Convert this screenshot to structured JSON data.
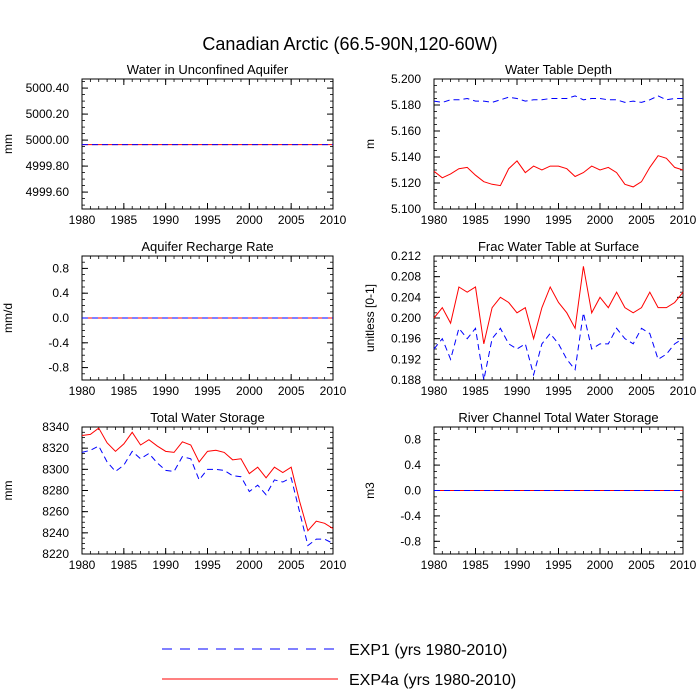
{
  "figure": {
    "title": "Canadian Arctic (66.5-90N,120-60W)"
  },
  "colors": {
    "exp1": "#0000ff",
    "exp4a": "#ff0000",
    "axis": "#000000",
    "background": "#ffffff"
  },
  "legend": [
    {
      "label": "EXP1 (yrs 1980-2010)",
      "color": "#0000ff",
      "dash": "dashed"
    },
    {
      "label": "EXP4a (yrs 1980-2010)",
      "color": "#ff0000",
      "dash": "solid"
    }
  ],
  "chart_data": [
    {
      "type": "line",
      "title": "Water in Unconfined Aquifer",
      "xlabel": "",
      "ylabel": "mm",
      "xlim": [
        1980,
        2010
      ],
      "ylim": [
        4999.47,
        5000.47
      ],
      "xticks": [
        1980,
        1985,
        1990,
        1995,
        2000,
        2005,
        2010
      ],
      "yticks": [
        4999.6,
        4999.8,
        5000.0,
        5000.2,
        5000.4
      ],
      "ytick_labels": [
        "4999.60",
        "4999.80",
        "5000.00",
        "5000.20",
        "5000.40"
      ],
      "x": [
        1980,
        1981,
        1982,
        1983,
        1984,
        1985,
        1986,
        1987,
        1988,
        1989,
        1990,
        1991,
        1992,
        1993,
        1994,
        1995,
        1996,
        1997,
        1998,
        1999,
        2000,
        2001,
        2002,
        2003,
        2004,
        2005,
        2006,
        2007,
        2008,
        2009,
        2010
      ],
      "series": [
        {
          "name": "EXP1 (yrs 1980-2010)",
          "values": [
            4999.965,
            4999.965,
            4999.965,
            4999.965,
            4999.965,
            4999.965,
            4999.965,
            4999.965,
            4999.965,
            4999.965,
            4999.965,
            4999.965,
            4999.965,
            4999.965,
            4999.965,
            4999.965,
            4999.965,
            4999.965,
            4999.965,
            4999.965,
            4999.965,
            4999.965,
            4999.965,
            4999.965,
            4999.965,
            4999.965,
            4999.965,
            4999.965,
            4999.965,
            4999.965,
            4999.965
          ]
        },
        {
          "name": "EXP4a (yrs 1980-2010)",
          "values": [
            4999.965,
            4999.965,
            4999.965,
            4999.965,
            4999.965,
            4999.965,
            4999.965,
            4999.965,
            4999.965,
            4999.965,
            4999.965,
            4999.965,
            4999.965,
            4999.965,
            4999.965,
            4999.965,
            4999.965,
            4999.965,
            4999.965,
            4999.965,
            4999.965,
            4999.965,
            4999.965,
            4999.965,
            4999.965,
            4999.965,
            4999.965,
            4999.965,
            4999.965,
            4999.965,
            4999.965
          ]
        }
      ]
    },
    {
      "type": "line",
      "title": "Water Table Depth",
      "xlabel": "",
      "ylabel": "m",
      "xlim": [
        1980,
        2010
      ],
      "ylim": [
        5.1,
        5.2
      ],
      "xticks": [
        1980,
        1985,
        1990,
        1995,
        2000,
        2005,
        2010
      ],
      "yticks": [
        5.1,
        5.12,
        5.14,
        5.16,
        5.18,
        5.2
      ],
      "ytick_labels": [
        "5.100",
        "5.120",
        "5.140",
        "5.160",
        "5.180",
        "5.200"
      ],
      "x": [
        1980,
        1981,
        1982,
        1983,
        1984,
        1985,
        1986,
        1987,
        1988,
        1989,
        1990,
        1991,
        1992,
        1993,
        1994,
        1995,
        1996,
        1997,
        1998,
        1999,
        2000,
        2001,
        2002,
        2003,
        2004,
        2005,
        2006,
        2007,
        2008,
        2009,
        2010
      ],
      "series": [
        {
          "name": "EXP1 (yrs 1980-2010)",
          "values": [
            5.183,
            5.182,
            5.184,
            5.184,
            5.185,
            5.183,
            5.183,
            5.182,
            5.184,
            5.186,
            5.185,
            5.183,
            5.184,
            5.184,
            5.185,
            5.185,
            5.185,
            5.187,
            5.184,
            5.185,
            5.185,
            5.184,
            5.184,
            5.182,
            5.183,
            5.182,
            5.184,
            5.187,
            5.184,
            5.185,
            5.185
          ]
        },
        {
          "name": "EXP4a (yrs 1980-2010)",
          "values": [
            5.129,
            5.124,
            5.127,
            5.131,
            5.132,
            5.126,
            5.121,
            5.119,
            5.118,
            5.131,
            5.137,
            5.128,
            5.133,
            5.13,
            5.133,
            5.133,
            5.131,
            5.125,
            5.128,
            5.133,
            5.13,
            5.132,
            5.128,
            5.119,
            5.117,
            5.121,
            5.132,
            5.141,
            5.139,
            5.132,
            5.13
          ]
        }
      ]
    },
    {
      "type": "line",
      "title": "Aquifer Recharge Rate",
      "xlabel": "",
      "ylabel": "mm/d",
      "xlim": [
        1980,
        2010
      ],
      "ylim": [
        -1.0,
        1.0
      ],
      "xticks": [
        1980,
        1985,
        1990,
        1995,
        2000,
        2005,
        2010
      ],
      "yticks": [
        -0.8,
        -0.4,
        0.0,
        0.4,
        0.8
      ],
      "ytick_labels": [
        "-0.8",
        "-0.4",
        "0.0",
        "0.4",
        "0.8"
      ],
      "x": [
        1980,
        1981,
        1982,
        1983,
        1984,
        1985,
        1986,
        1987,
        1988,
        1989,
        1990,
        1991,
        1992,
        1993,
        1994,
        1995,
        1996,
        1997,
        1998,
        1999,
        2000,
        2001,
        2002,
        2003,
        2004,
        2005,
        2006,
        2007,
        2008,
        2009,
        2010
      ],
      "series": [
        {
          "name": "EXP1 (yrs 1980-2010)",
          "values": [
            0,
            0,
            0,
            0,
            0,
            0,
            0,
            0,
            0,
            0,
            0,
            0,
            0,
            0,
            0,
            0,
            0,
            0,
            0,
            0,
            0,
            0,
            0,
            0,
            0,
            0,
            0,
            0,
            0,
            0,
            0
          ]
        },
        {
          "name": "EXP4a (yrs 1980-2010)",
          "values": [
            0,
            0,
            0,
            0,
            0,
            0,
            0,
            0,
            0,
            0,
            0,
            0,
            0,
            0,
            0,
            0,
            0,
            0,
            0,
            0,
            0,
            0,
            0,
            0,
            0,
            0,
            0,
            0,
            0,
            0,
            0
          ]
        }
      ]
    },
    {
      "type": "line",
      "title": "Frac Water Table at Surface",
      "xlabel": "",
      "ylabel": "unitless [0-1]",
      "xlim": [
        1980,
        2010
      ],
      "ylim": [
        0.188,
        0.212
      ],
      "xticks": [
        1980,
        1985,
        1990,
        1995,
        2000,
        2005,
        2010
      ],
      "yticks": [
        0.188,
        0.192,
        0.196,
        0.2,
        0.204,
        0.208,
        0.212
      ],
      "ytick_labels": [
        "0.188",
        "0.192",
        "0.196",
        "0.200",
        "0.204",
        "0.208",
        "0.212"
      ],
      "x": [
        1980,
        1981,
        1982,
        1983,
        1984,
        1985,
        1986,
        1987,
        1988,
        1989,
        1990,
        1991,
        1992,
        1993,
        1994,
        1995,
        1996,
        1997,
        1998,
        1999,
        2000,
        2001,
        2002,
        2003,
        2004,
        2005,
        2006,
        2007,
        2008,
        2009,
        2010
      ],
      "series": [
        {
          "name": "EXP1 (yrs 1980-2010)",
          "values": [
            0.194,
            0.196,
            0.192,
            0.198,
            0.196,
            0.198,
            0.188,
            0.196,
            0.198,
            0.195,
            0.194,
            0.195,
            0.189,
            0.195,
            0.197,
            0.195,
            0.192,
            0.19,
            0.201,
            0.194,
            0.195,
            0.195,
            0.198,
            0.196,
            0.195,
            0.198,
            0.197,
            0.192,
            0.193,
            0.195,
            0.196
          ]
        },
        {
          "name": "EXP4a (yrs 1980-2010)",
          "values": [
            0.2,
            0.202,
            0.199,
            0.206,
            0.205,
            0.206,
            0.195,
            0.202,
            0.204,
            0.203,
            0.201,
            0.202,
            0.196,
            0.202,
            0.206,
            0.203,
            0.201,
            0.198,
            0.21,
            0.201,
            0.204,
            0.202,
            0.205,
            0.202,
            0.201,
            0.202,
            0.205,
            0.202,
            0.202,
            0.203,
            0.205
          ]
        }
      ]
    },
    {
      "type": "line",
      "title": "Total Water Storage",
      "xlabel": "",
      "ylabel": "mm",
      "xlim": [
        1980,
        2010
      ],
      "ylim": [
        8220,
        8340
      ],
      "xticks": [
        1980,
        1985,
        1990,
        1995,
        2000,
        2005,
        2010
      ],
      "yticks": [
        8220,
        8240,
        8260,
        8280,
        8300,
        8320,
        8340
      ],
      "ytick_labels": [
        "8220",
        "8240",
        "8260",
        "8280",
        "8300",
        "8320",
        "8340"
      ],
      "x": [
        1980,
        1981,
        1982,
        1983,
        1984,
        1985,
        1986,
        1987,
        1988,
        1989,
        1990,
        1991,
        1992,
        1993,
        1994,
        1995,
        1996,
        1997,
        1998,
        1999,
        2000,
        2001,
        2002,
        2003,
        2004,
        2005,
        2006,
        2007,
        2008,
        2009,
        2010
      ],
      "series": [
        {
          "name": "EXP1 (yrs 1980-2010)",
          "values": [
            8316,
            8318,
            8322,
            8307,
            8298,
            8304,
            8317,
            8310,
            8315,
            8306,
            8299,
            8298,
            8312,
            8310,
            8290,
            8300,
            8300,
            8299,
            8294,
            8293,
            8279,
            8285,
            8276,
            8290,
            8288,
            8292,
            8260,
            8228,
            8234,
            8234,
            8230
          ]
        },
        {
          "name": "EXP4a (yrs 1980-2010)",
          "values": [
            8332,
            8333,
            8339,
            8325,
            8317,
            8324,
            8335,
            8323,
            8328,
            8322,
            8317,
            8316,
            8326,
            8323,
            8307,
            8317,
            8318,
            8316,
            8309,
            8310,
            8296,
            8302,
            8292,
            8302,
            8297,
            8302,
            8270,
            8242,
            8251,
            8249,
            8244
          ]
        }
      ]
    },
    {
      "type": "line",
      "title": "River Channel Total Water Storage",
      "xlabel": "",
      "ylabel": "m3",
      "xlim": [
        1980,
        2010
      ],
      "ylim": [
        -1.0,
        1.0
      ],
      "xticks": [
        1980,
        1985,
        1990,
        1995,
        2000,
        2005,
        2010
      ],
      "yticks": [
        -0.8,
        -0.4,
        0.0,
        0.4,
        0.8
      ],
      "ytick_labels": [
        "-0.8",
        "-0.4",
        "0.0",
        "0.4",
        "0.8"
      ],
      "x": [
        1980,
        1981,
        1982,
        1983,
        1984,
        1985,
        1986,
        1987,
        1988,
        1989,
        1990,
        1991,
        1992,
        1993,
        1994,
        1995,
        1996,
        1997,
        1998,
        1999,
        2000,
        2001,
        2002,
        2003,
        2004,
        2005,
        2006,
        2007,
        2008,
        2009,
        2010
      ],
      "series": [
        {
          "name": "EXP1 (yrs 1980-2010)",
          "values": [
            0,
            0,
            0,
            0,
            0,
            0,
            0,
            0,
            0,
            0,
            0,
            0,
            0,
            0,
            0,
            0,
            0,
            0,
            0,
            0,
            0,
            0,
            0,
            0,
            0,
            0,
            0,
            0,
            0,
            0,
            0
          ]
        },
        {
          "name": "EXP4a (yrs 1980-2010)",
          "values": [
            0,
            0,
            0,
            0,
            0,
            0,
            0,
            0,
            0,
            0,
            0,
            0,
            0,
            0,
            0,
            0,
            0,
            0,
            0,
            0,
            0,
            0,
            0,
            0,
            0,
            0,
            0,
            0,
            0,
            0,
            0
          ]
        }
      ]
    }
  ]
}
